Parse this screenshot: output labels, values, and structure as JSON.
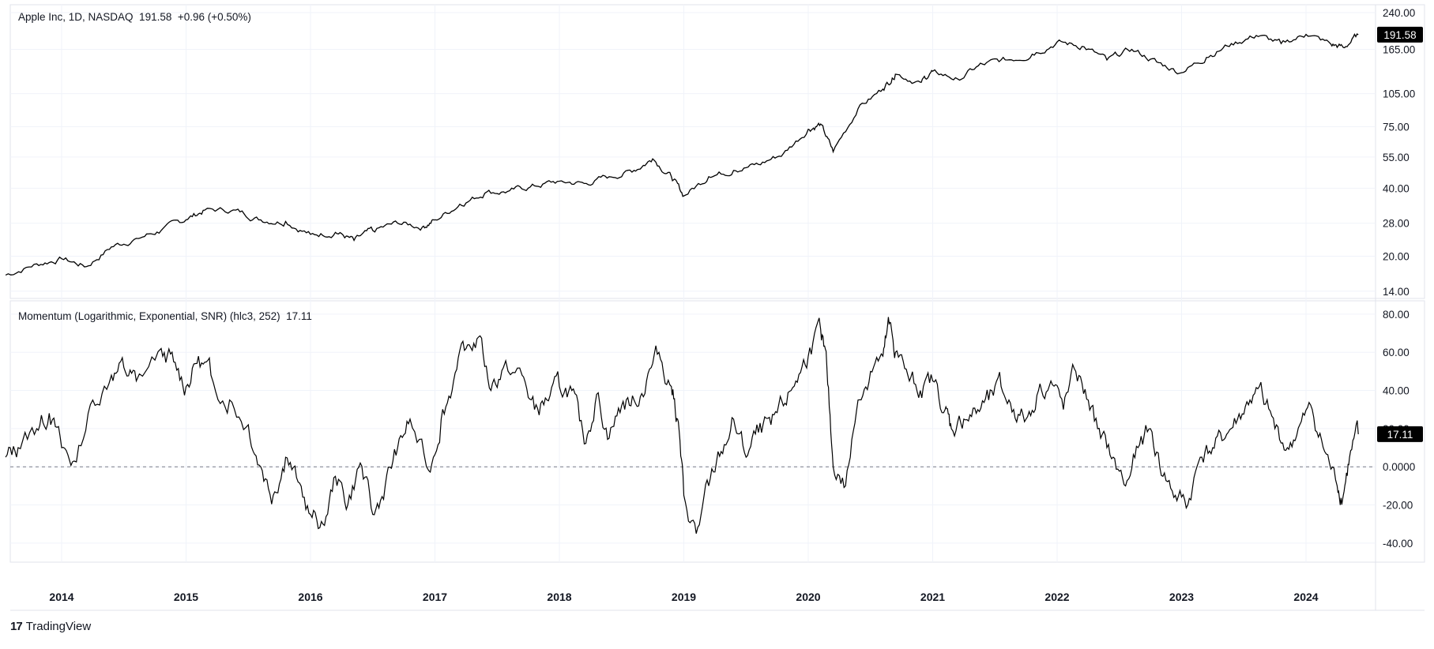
{
  "brand": {
    "logo_glyph": "17",
    "name": "TradingView"
  },
  "price_pane": {
    "legend": "Apple Inc, 1D, NASDAQ  191.58  +0.96 (+0.50%)",
    "axis_ticks": [
      "240.00",
      "165.00",
      "105.00",
      "75.00",
      "55.00",
      "40.00",
      "28.00",
      "20.00",
      "14.00"
    ],
    "last_value_label": "191.58"
  },
  "momentum_pane": {
    "legend": "Momentum (Logarithmic, Exponential, SNR) (hlc3, 252)  17.11",
    "axis_ticks": [
      "80.00",
      "60.00",
      "40.00",
      "20.00",
      "0.0000",
      "-20.00",
      "-40.00"
    ],
    "last_value_label": "17.11"
  },
  "x_axis": {
    "labels": [
      "2014",
      "2015",
      "2016",
      "2017",
      "2018",
      "2019",
      "2020",
      "2021",
      "2022",
      "2023",
      "2024"
    ]
  },
  "chart_data": [
    {
      "type": "line",
      "name": "Apple Inc, 1D, NASDAQ",
      "scale": "log",
      "ylim": [
        13,
        260
      ],
      "y_ticks": [
        240,
        165,
        105,
        75,
        55,
        40,
        28,
        20,
        14
      ],
      "last_value": 191.58,
      "x": [
        2013.55,
        2013.8,
        2014.0,
        2014.2,
        2014.4,
        2014.6,
        2014.8,
        2015.0,
        2015.15,
        2015.4,
        2015.6,
        2015.8,
        2016.0,
        2016.2,
        2016.35,
        2016.5,
        2016.7,
        2016.9,
        2017.0,
        2017.2,
        2017.4,
        2017.6,
        2017.8,
        2018.0,
        2018.2,
        2018.4,
        2018.6,
        2018.75,
        2018.9,
        2019.0,
        2019.2,
        2019.4,
        2019.6,
        2019.8,
        2020.0,
        2020.1,
        2020.2,
        2020.4,
        2020.6,
        2020.7,
        2020.9,
        2021.0,
        2021.2,
        2021.4,
        2021.6,
        2021.8,
        2022.0,
        2022.2,
        2022.4,
        2022.6,
        2022.8,
        2023.0,
        2023.2,
        2023.4,
        2023.6,
        2023.8,
        2024.0,
        2024.2,
        2024.3,
        2024.42
      ],
      "values": [
        16.5,
        18.5,
        19.5,
        18,
        22,
        24,
        26,
        29,
        32,
        32,
        29,
        28.5,
        25,
        25.5,
        23.5,
        26,
        28,
        27,
        29,
        34,
        38,
        39,
        41,
        43,
        42,
        45,
        48,
        54,
        45,
        37,
        45,
        48,
        51,
        57,
        73,
        77,
        58,
        90,
        110,
        128,
        118,
        132,
        122,
        142,
        148,
        157,
        178,
        170,
        148,
        165,
        145,
        130,
        152,
        175,
        190,
        175,
        192,
        174,
        168,
        191.58
      ]
    },
    {
      "type": "line",
      "name": "Momentum (Logarithmic, Exponential, SNR) (hlc3, 252)",
      "ylim": [
        -50,
        87
      ],
      "y_ticks": [
        80,
        60,
        40,
        20,
        0,
        -20,
        -40
      ],
      "reference_line": 0,
      "last_value": 17.11,
      "x": [
        2013.55,
        2013.65,
        2013.8,
        2013.9,
        2014.0,
        2014.1,
        2014.25,
        2014.4,
        2014.5,
        2014.6,
        2014.8,
        2014.9,
        2015.0,
        2015.1,
        2015.2,
        2015.35,
        2015.5,
        2015.6,
        2015.7,
        2015.8,
        2015.9,
        2016.0,
        2016.1,
        2016.2,
        2016.3,
        2016.4,
        2016.5,
        2016.6,
        2016.7,
        2016.8,
        2016.95,
        2017.05,
        2017.15,
        2017.25,
        2017.35,
        2017.45,
        2017.55,
        2017.7,
        2017.8,
        2017.9,
        2018.0,
        2018.1,
        2018.2,
        2018.3,
        2018.4,
        2018.5,
        2018.6,
        2018.7,
        2018.8,
        2018.9,
        2018.95,
        2019.0,
        2019.1,
        2019.2,
        2019.3,
        2019.4,
        2019.5,
        2019.6,
        2019.7,
        2019.8,
        2019.9,
        2020.0,
        2020.1,
        2020.15,
        2020.2,
        2020.3,
        2020.4,
        2020.5,
        2020.6,
        2020.65,
        2020.7,
        2020.8,
        2020.9,
        2021.0,
        2021.1,
        2021.15,
        2021.25,
        2021.35,
        2021.45,
        2021.55,
        2021.65,
        2021.75,
        2021.85,
        2021.95,
        2022.05,
        2022.15,
        2022.25,
        2022.35,
        2022.45,
        2022.55,
        2022.65,
        2022.75,
        2022.85,
        2022.95,
        2023.05,
        2023.15,
        2023.25,
        2023.35,
        2023.45,
        2023.55,
        2023.65,
        2023.75,
        2023.85,
        2023.95,
        2024.05,
        2024.15,
        2024.25,
        2024.3,
        2024.35,
        2024.42
      ],
      "values": [
        5,
        10,
        20,
        28,
        10,
        3,
        35,
        48,
        52,
        45,
        62,
        55,
        42,
        58,
        48,
        35,
        22,
        0,
        -15,
        5,
        -8,
        -25,
        -30,
        -5,
        -20,
        2,
        -25,
        -10,
        10,
        25,
        -2,
        25,
        45,
        62,
        68,
        40,
        52,
        48,
        30,
        35,
        42,
        40,
        12,
        38,
        15,
        32,
        35,
        45,
        60,
        42,
        25,
        -15,
        -35,
        -10,
        8,
        25,
        5,
        18,
        22,
        32,
        45,
        58,
        72,
        52,
        0,
        -10,
        35,
        50,
        58,
        75,
        60,
        48,
        40,
        45,
        30,
        20,
        25,
        28,
        35,
        42,
        30,
        25,
        40,
        45,
        30,
        50,
        35,
        15,
        5,
        -10,
        10,
        20,
        -5,
        -15,
        -20,
        5,
        10,
        15,
        25,
        35,
        38,
        20,
        10,
        22,
        30,
        8,
        -10,
        -15,
        5,
        17.11
      ]
    }
  ]
}
